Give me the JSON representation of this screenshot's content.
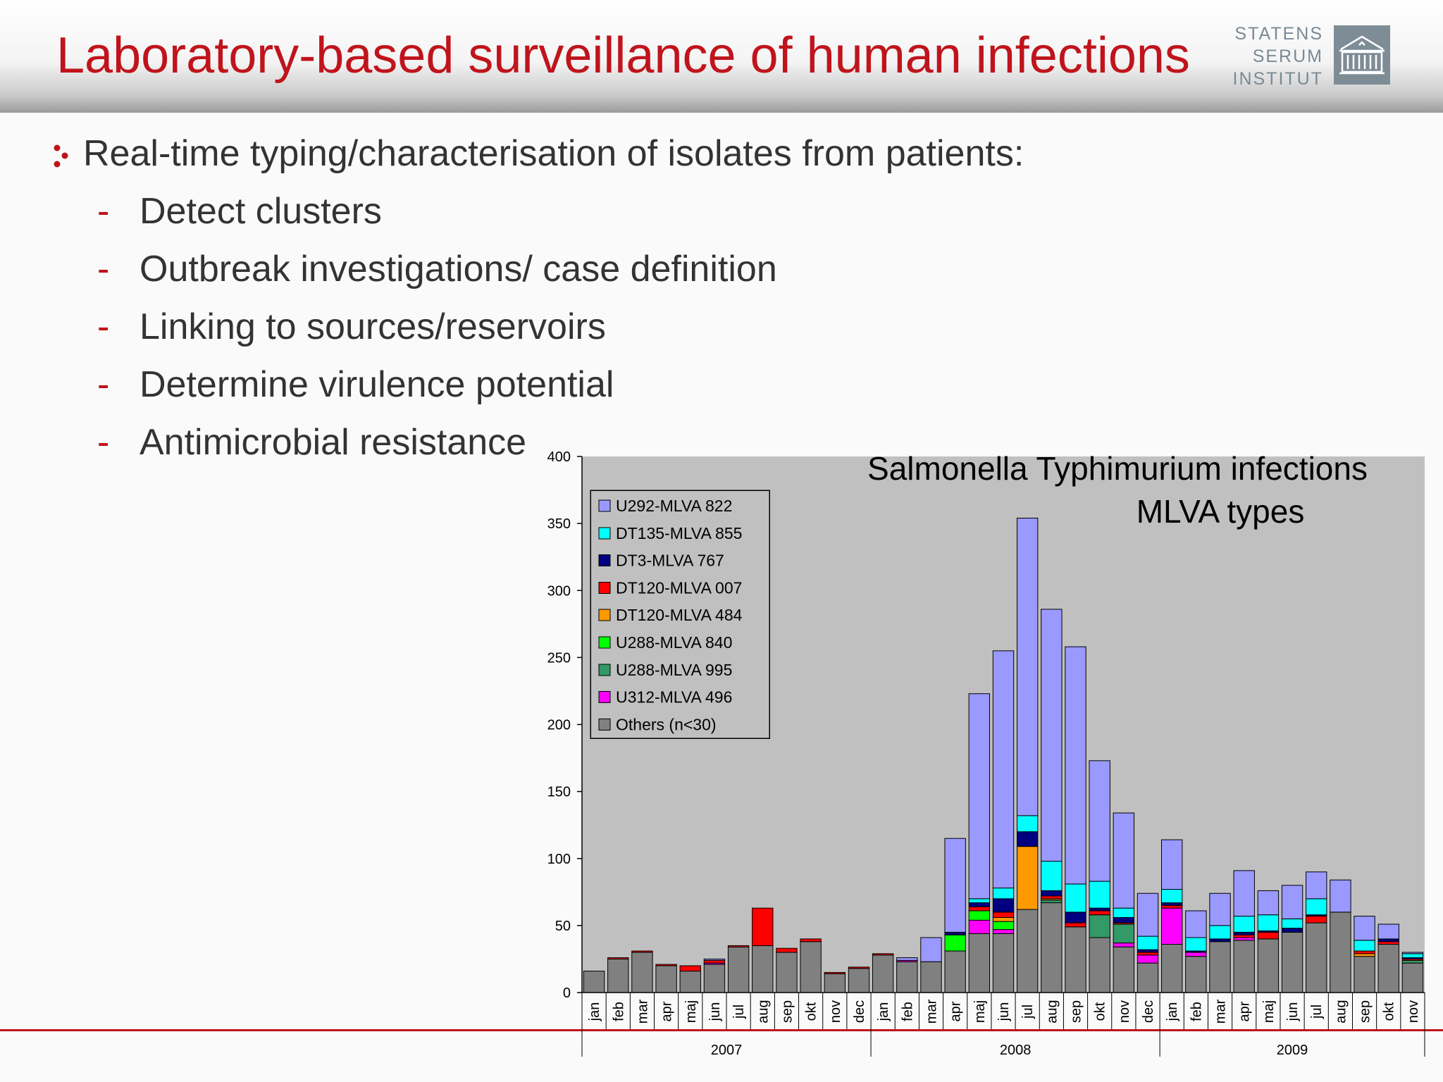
{
  "slide": {
    "title": "Laboratory-based surveillance of human infections",
    "logo_lines": [
      "STATENS",
      "SERUM",
      "INSTITUT"
    ],
    "bullet": "Real-time typing/characterisation of isolates from patients:",
    "sub_items": [
      "Detect clusters",
      "Outbreak investigations/ case definition",
      "Linking to sources/reservoirs",
      "Determine virulence potential",
      "Antimicrobial resistance"
    ],
    "dash": "-",
    "colors": {
      "title": "#c0141c",
      "text": "#333333",
      "logo": "#7e8c96"
    }
  },
  "chart_data": {
    "type": "bar",
    "stacked": true,
    "title_lines": [
      "Salmonella Typhimurium infections",
      "MLVA types"
    ],
    "ylim": [
      0,
      400
    ],
    "yticks": [
      0,
      50,
      100,
      150,
      200,
      250,
      300,
      350,
      400
    ],
    "categories": [
      "jan",
      "feb",
      "mar",
      "apr",
      "maj",
      "jun",
      "jul",
      "aug",
      "sep",
      "okt",
      "nov",
      "dec",
      "jan",
      "feb",
      "mar",
      "apr",
      "maj",
      "jun",
      "jul",
      "aug",
      "sep",
      "okt",
      "nov",
      "dec",
      "jan",
      "feb",
      "mar",
      "apr",
      "maj",
      "jun",
      "jul",
      "aug",
      "sep",
      "okt",
      "nov"
    ],
    "years": [
      {
        "label": "2007",
        "start": 0,
        "count": 12
      },
      {
        "label": "2008",
        "start": 12,
        "count": 12
      },
      {
        "label": "2009",
        "start": 24,
        "count": 11
      }
    ],
    "legend_location": "top-left",
    "series": [
      {
        "name": "Others (n<30)",
        "color": "#808080",
        "values": [
          16,
          25,
          30,
          20,
          16,
          21,
          34,
          35,
          30,
          38,
          14,
          18,
          28,
          23,
          23,
          31,
          44,
          44,
          62,
          67,
          49,
          41,
          34,
          22,
          36,
          27,
          38,
          39,
          40,
          45,
          52,
          60,
          27,
          36,
          22
        ]
      },
      {
        "name": "U312-MLVA 496",
        "color": "#ff00ff",
        "values": [
          0,
          0,
          0,
          0,
          0,
          1,
          0,
          0,
          0,
          0,
          0,
          0,
          0,
          1,
          0,
          0,
          10,
          3,
          0,
          0,
          0,
          0,
          3,
          6,
          27,
          3,
          0,
          2,
          0,
          0,
          0,
          0,
          0,
          0,
          0
        ]
      },
      {
        "name": "U288-MLVA 995",
        "color": "#339966",
        "values": [
          0,
          0,
          0,
          0,
          0,
          0,
          0,
          0,
          0,
          0,
          0,
          0,
          0,
          0,
          0,
          0,
          0,
          0,
          0,
          2,
          0,
          17,
          14,
          0,
          0,
          0,
          0,
          0,
          0,
          0,
          0,
          0,
          0,
          0,
          2
        ]
      },
      {
        "name": "U288-MLVA 840",
        "color": "#00ff00",
        "values": [
          0,
          0,
          0,
          0,
          0,
          0,
          0,
          0,
          0,
          0,
          0,
          0,
          0,
          0,
          0,
          12,
          7,
          6,
          0,
          0,
          0,
          0,
          0,
          0,
          0,
          0,
          0,
          0,
          0,
          0,
          0,
          0,
          0,
          0,
          0
        ]
      },
      {
        "name": "DT120-MLVA 484",
        "color": "#ff9900",
        "values": [
          0,
          0,
          0,
          0,
          0,
          0,
          0,
          0,
          0,
          0,
          0,
          0,
          0,
          0,
          0,
          0,
          0,
          3,
          47,
          1,
          0,
          0,
          0,
          0,
          0,
          0,
          0,
          0,
          0,
          0,
          0,
          0,
          2,
          0,
          0
        ]
      },
      {
        "name": "DT120-MLVA 007",
        "color": "#ff0000",
        "values": [
          0,
          1,
          1,
          1,
          4,
          2,
          1,
          28,
          3,
          2,
          1,
          1,
          1,
          0,
          0,
          0,
          3,
          4,
          0,
          2,
          3,
          3,
          1,
          2,
          2,
          0,
          0,
          2,
          5,
          0,
          5,
          0,
          2,
          2,
          1
        ]
      },
      {
        "name": "DT3-MLVA 767",
        "color": "#000080",
        "values": [
          0,
          0,
          0,
          0,
          0,
          0,
          0,
          0,
          0,
          0,
          0,
          0,
          0,
          0,
          0,
          2,
          3,
          10,
          11,
          4,
          8,
          2,
          4,
          2,
          2,
          1,
          2,
          2,
          1,
          3,
          1,
          0,
          0,
          2,
          1
        ]
      },
      {
        "name": "DT135-MLVA 855",
        "color": "#00ffff",
        "values": [
          0,
          0,
          0,
          0,
          0,
          0,
          0,
          0,
          0,
          0,
          0,
          0,
          0,
          0,
          0,
          0,
          3,
          8,
          12,
          22,
          21,
          20,
          7,
          10,
          10,
          10,
          10,
          12,
          12,
          7,
          12,
          0,
          8,
          0,
          3
        ]
      },
      {
        "name": "U292-MLVA 822",
        "color": "#9999ff",
        "values": [
          0,
          0,
          0,
          0,
          0,
          1,
          0,
          0,
          0,
          0,
          0,
          0,
          0,
          2,
          18,
          70,
          153,
          177,
          222,
          188,
          177,
          90,
          71,
          32,
          37,
          20,
          24,
          34,
          18,
          25,
          20,
          24,
          18,
          11,
          1
        ]
      }
    ]
  }
}
